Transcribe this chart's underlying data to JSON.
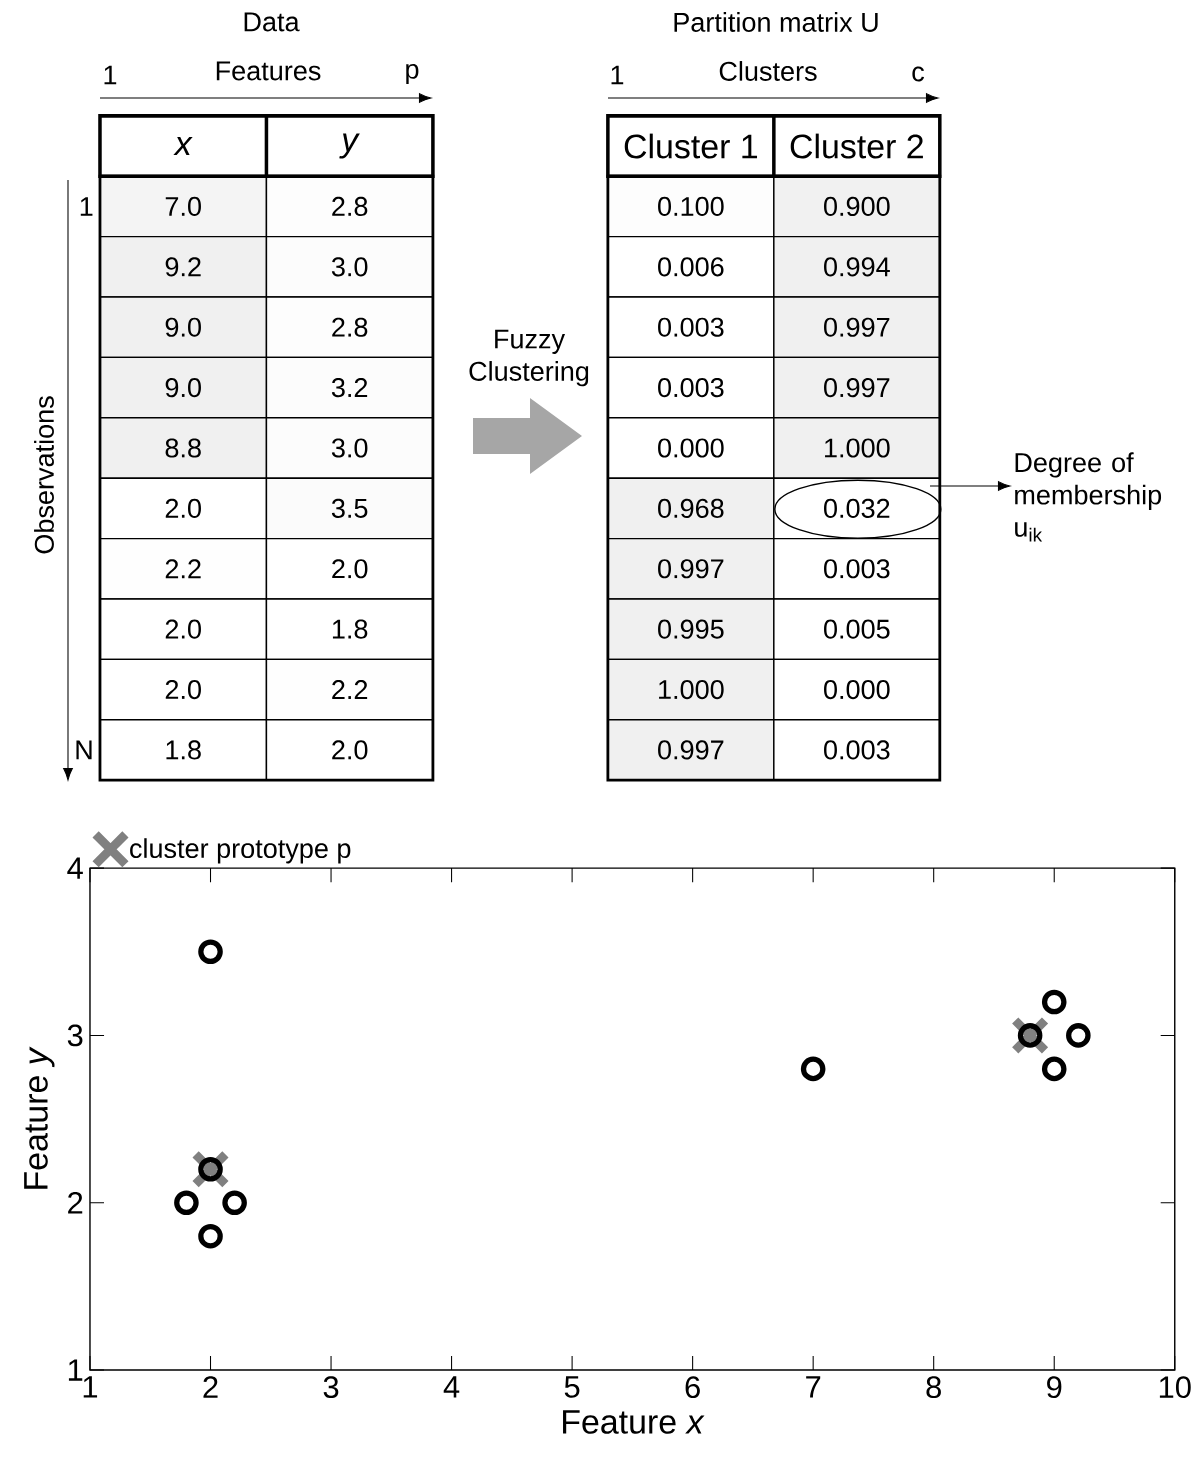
{
  "chart_data": [
    {
      "type": "heatmap",
      "title": "Data",
      "xlabel": "Features",
      "ylabel": "Observations",
      "categories": [
        "x",
        "y"
      ],
      "cells": [
        [
          7.0,
          2.8
        ],
        [
          9.2,
          3.0
        ],
        [
          9.0,
          2.8
        ],
        [
          9.0,
          3.2
        ],
        [
          8.8,
          3.0
        ],
        [
          2.0,
          3.5
        ],
        [
          2.2,
          2.0
        ],
        [
          2.0,
          1.8
        ],
        [
          2.0,
          2.2
        ],
        [
          1.8,
          2.0
        ]
      ],
      "cell_labels": [
        [
          "7.0",
          "2.8"
        ],
        [
          "9.2",
          "3.0"
        ],
        [
          "9.0",
          "2.8"
        ],
        [
          "9.0",
          "3.2"
        ],
        [
          "8.8",
          "3.0"
        ],
        [
          "2.0",
          "3.5"
        ],
        [
          "2.2",
          "2.0"
        ],
        [
          "2.0",
          "1.8"
        ],
        [
          "2.0",
          "2.2"
        ],
        [
          "1.8",
          "2.0"
        ]
      ],
      "y_categories": [
        "1",
        null,
        null,
        null,
        null,
        null,
        null,
        null,
        null,
        "N"
      ],
      "annotations": [
        "1",
        "p"
      ]
    },
    {
      "type": "heatmap",
      "title": "Partition matrix U",
      "xlabel": "Clusters",
      "categories": [
        "Cluster 1",
        "Cluster 2"
      ],
      "y_categories": [
        null,
        null,
        null,
        null,
        null,
        null,
        null,
        null,
        null,
        null
      ],
      "cells": [
        [
          0.1,
          0.9
        ],
        [
          0.006,
          0.994
        ],
        [
          0.003,
          0.997
        ],
        [
          0.003,
          0.997
        ],
        [
          0.0,
          1.0
        ],
        [
          0.968,
          0.032
        ],
        [
          0.997,
          0.003
        ],
        [
          0.995,
          0.005
        ],
        [
          1.0,
          0.0
        ],
        [
          0.997,
          0.003
        ]
      ],
      "cell_labels": [
        [
          "0.100",
          "0.900"
        ],
        [
          "0.006",
          "0.994"
        ],
        [
          "0.003",
          "0.997"
        ],
        [
          "0.003",
          "0.997"
        ],
        [
          "0.000",
          "1.000"
        ],
        [
          "0.968",
          "0.032"
        ],
        [
          "0.997",
          "0.003"
        ],
        [
          "0.995",
          "0.005"
        ],
        [
          "1.000",
          "0.000"
        ],
        [
          "0.997",
          "0.003"
        ]
      ],
      "annotations": [
        "1",
        "c",
        "Fuzzy Clustering",
        "Degree of membership u$_{ik}$"
      ]
    },
    {
      "type": "scatter",
      "xlabel": "Feature *x*",
      "ylabel": "Feature *y*",
      "xlim": [
        1,
        10
      ],
      "ylim": [
        1,
        4
      ],
      "xticks": [
        1,
        2,
        3,
        4,
        5,
        6,
        7,
        8,
        9,
        10
      ],
      "yticks": [
        1,
        2,
        3,
        4
      ],
      "legend": "top left",
      "series": [
        {
          "name": "cluster prototype p",
          "color": "#808080",
          "marker": "cross",
          "x": [
            2.0,
            8.8
          ],
          "values": [
            2.2,
            3.0
          ]
        },
        {
          "color": "#000000",
          "marker": "circle",
          "x": [
            7.0,
            9.2,
            9.0,
            9.0,
            8.8,
            2.0,
            2.2,
            2.0,
            2.0,
            1.8
          ],
          "values": [
            2.8,
            3.0,
            2.8,
            3.2,
            3.0,
            3.5,
            2.0,
            1.8,
            2.2,
            2.0
          ]
        }
      ]
    }
  ]
}
